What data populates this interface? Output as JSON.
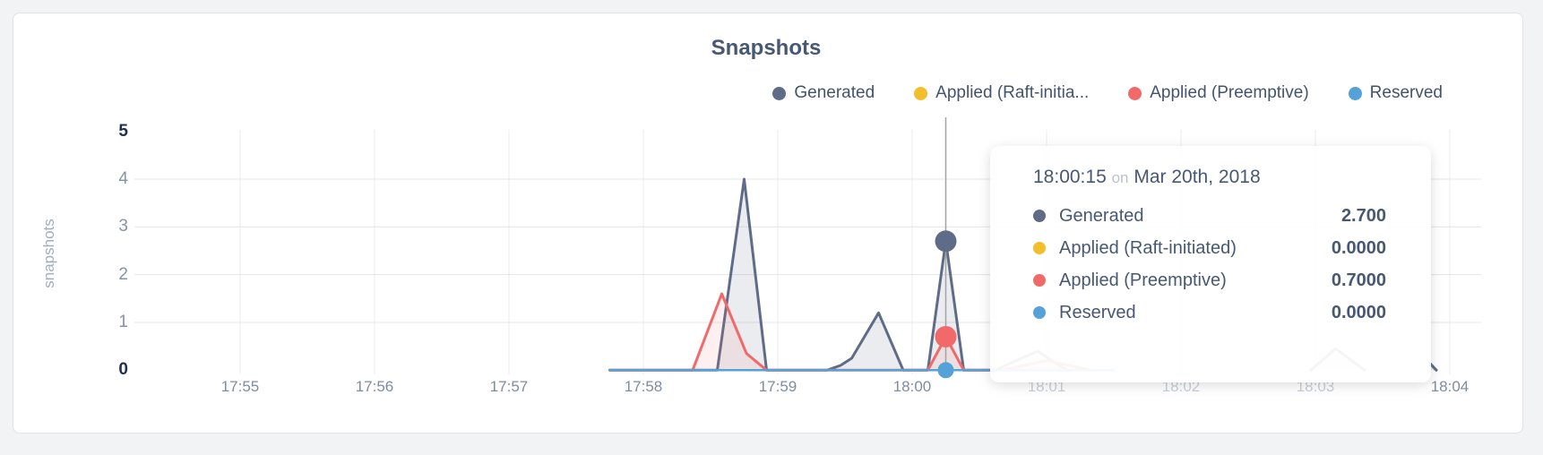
{
  "chart": {
    "title": "Snapshots",
    "ylabel": "snapshots"
  },
  "tooltip": {
    "time": "18:00:15",
    "on": "on",
    "date": "Mar 20th, 2018",
    "rows": [
      {
        "label": "Generated",
        "value": "2.700",
        "color": "#5f6c87"
      },
      {
        "label": "Applied (Raft-initiated)",
        "value": "0.0000",
        "color": "#f2be2c"
      },
      {
        "label": "Applied (Preemptive)",
        "value": "0.7000",
        "color": "#f16969"
      },
      {
        "label": "Reserved",
        "value": "0.0000",
        "color": "#54a2d7"
      }
    ]
  },
  "chart_data": {
    "type": "area",
    "title": "Snapshots",
    "ylabel": "snapshots",
    "ylim": [
      0,
      5
    ],
    "grid": true,
    "legend_position": "top-right",
    "yticks": [
      {
        "label": "5",
        "value": 5,
        "bold": true
      },
      {
        "label": "4",
        "value": 4,
        "bold": false
      },
      {
        "label": "3",
        "value": 3,
        "bold": false
      },
      {
        "label": "2",
        "value": 2,
        "bold": false
      },
      {
        "label": "1",
        "value": 1,
        "bold": false
      },
      {
        "label": "0",
        "value": 0,
        "bold": true
      }
    ],
    "xticks": [
      "17:55",
      "17:56",
      "17:57",
      "17:58",
      "17:59",
      "18:00",
      "18:01",
      "18:02",
      "18:03",
      "18:04"
    ],
    "hover_time": "18:00:15",
    "series": [
      {
        "name": "Generated",
        "legend_label": "Generated",
        "color": "#5f6c87",
        "fill": "rgba(95,108,135,0.13)",
        "stroke_width": 3,
        "hover_value": 2.7,
        "marker_r": 12,
        "segments": [
          [
            [
              "17:57:45",
              0
            ],
            [
              "17:58:33",
              0
            ],
            [
              "17:58:45",
              4.0
            ],
            [
              "17:58:55",
              0
            ],
            [
              "17:59:22",
              0
            ],
            [
              "17:59:28",
              0.1
            ],
            [
              "17:59:33",
              0.25
            ],
            [
              "17:59:45",
              1.2
            ],
            [
              "17:59:56",
              0
            ],
            [
              "18:00:07",
              0
            ],
            [
              "18:00:15",
              2.7
            ],
            [
              "18:00:23",
              0
            ],
            [
              "18:00:37",
              0
            ],
            [
              "18:00:56",
              0.4
            ],
            [
              "18:01:09",
              0
            ]
          ],
          [
            [
              "18:02:58",
              0
            ],
            [
              "18:03:09",
              0.45
            ],
            [
              "18:03:22",
              0
            ]
          ],
          [
            [
              "18:03:51",
              0.15
            ],
            [
              "18:03:54",
              0
            ]
          ]
        ]
      },
      {
        "name": "Applied (Raft-initiated)",
        "legend_label": "Applied (Raft-initia...",
        "color": "#f2be2c",
        "fill": null,
        "stroke_width": 2,
        "hover_value": 0.0,
        "marker_r": null,
        "segments": [
          [
            [
              "17:57:45",
              0
            ],
            [
              "18:01:30",
              0
            ]
          ]
        ]
      },
      {
        "name": "Applied (Preemptive)",
        "legend_label": "Applied (Preemptive)",
        "color": "#f16969",
        "fill": "rgba(241,105,105,0.10)",
        "stroke_width": 3,
        "hover_value": 0.7,
        "marker_r": 12,
        "segments": [
          [
            [
              "17:57:45",
              0
            ],
            [
              "17:58:22",
              0
            ],
            [
              "17:58:35",
              1.6
            ],
            [
              "17:58:46",
              0.35
            ],
            [
              "17:58:55",
              0
            ],
            [
              "18:00:07",
              0
            ],
            [
              "18:00:15",
              0.7
            ],
            [
              "18:00:23",
              0
            ],
            [
              "18:00:40",
              0
            ],
            [
              "18:01:00",
              0.2
            ],
            [
              "18:01:20",
              0
            ]
          ]
        ]
      },
      {
        "name": "Reserved",
        "legend_label": "Reserved",
        "color": "#54a2d7",
        "fill": null,
        "stroke_width": 2.5,
        "hover_value": 0.0,
        "marker_r": 9,
        "segments": [
          [
            [
              "17:57:45",
              0
            ],
            [
              "18:01:30",
              0
            ]
          ]
        ]
      }
    ]
  }
}
